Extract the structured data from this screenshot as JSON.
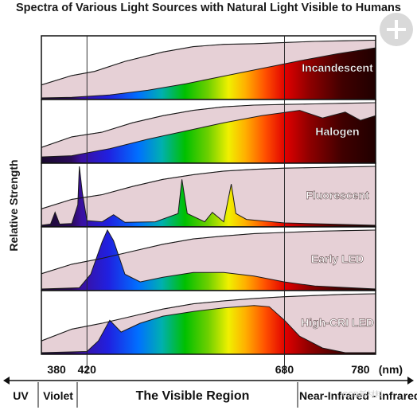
{
  "title": "Spectra of Various Light Sources with Natural Light Visible to Humans",
  "y_axis_label": "Relative Strength",
  "axis_unit": "(nm)",
  "regions": [
    {
      "label": "UV"
    },
    {
      "label": "Violet"
    },
    {
      "label": "The Visible Region"
    },
    {
      "label": "Near-Infrared - Infrared"
    }
  ],
  "watermark": "CSD新材料",
  "logo_icon": "plus-badge-icon",
  "colors": {
    "panel_border": "#111111",
    "natural_light_fill": "#e6d0d6",
    "curve_stroke": "#1a1a1a",
    "label_text": "#ffffff"
  },
  "chart_data": {
    "type": "area",
    "x_range_nm": [
      360,
      800
    ],
    "visible_range_nm": [
      420,
      680
    ],
    "x_ticks": [
      {
        "value": 380,
        "label": "380"
      },
      {
        "value": 420,
        "label": "420"
      },
      {
        "value": 680,
        "label": "680"
      },
      {
        "value": 780,
        "label": "780"
      }
    ],
    "panels": [
      {
        "name": "Incandescent",
        "natural": [
          [
            360,
            0.22
          ],
          [
            400,
            0.38
          ],
          [
            430,
            0.45
          ],
          [
            470,
            0.62
          ],
          [
            520,
            0.78
          ],
          [
            560,
            0.87
          ],
          [
            600,
            0.91
          ],
          [
            640,
            0.92
          ],
          [
            680,
            0.94
          ],
          [
            720,
            0.96
          ],
          [
            760,
            0.97
          ],
          [
            800,
            0.98
          ]
        ],
        "source": [
          [
            360,
            0.0
          ],
          [
            400,
            0.01
          ],
          [
            450,
            0.05
          ],
          [
            500,
            0.13
          ],
          [
            550,
            0.24
          ],
          [
            600,
            0.37
          ],
          [
            650,
            0.5
          ],
          [
            700,
            0.63
          ],
          [
            750,
            0.75
          ],
          [
            800,
            0.85
          ]
        ]
      },
      {
        "name": "Halogen",
        "natural": [
          [
            360,
            0.24
          ],
          [
            400,
            0.42
          ],
          [
            440,
            0.5
          ],
          [
            480,
            0.66
          ],
          [
            520,
            0.78
          ],
          [
            560,
            0.87
          ],
          [
            600,
            0.93
          ],
          [
            640,
            0.96
          ],
          [
            680,
            0.97
          ],
          [
            720,
            0.98
          ],
          [
            760,
            0.99
          ],
          [
            800,
            1.0
          ]
        ],
        "source": [
          [
            360,
            0.08
          ],
          [
            400,
            0.1
          ],
          [
            450,
            0.22
          ],
          [
            500,
            0.38
          ],
          [
            550,
            0.52
          ],
          [
            600,
            0.66
          ],
          [
            650,
            0.78
          ],
          [
            700,
            0.87
          ],
          [
            730,
            0.74
          ],
          [
            760,
            0.84
          ],
          [
            780,
            0.7
          ],
          [
            800,
            0.78
          ]
        ]
      },
      {
        "name": "Fluorescent",
        "natural": [
          [
            360,
            0.28
          ],
          [
            400,
            0.44
          ],
          [
            440,
            0.52
          ],
          [
            480,
            0.66
          ],
          [
            520,
            0.78
          ],
          [
            560,
            0.86
          ],
          [
            600,
            0.92
          ],
          [
            640,
            0.95
          ],
          [
            680,
            0.97
          ],
          [
            720,
            0.98
          ],
          [
            760,
            0.99
          ],
          [
            800,
            1.0
          ]
        ],
        "source": [
          [
            360,
            0.0
          ],
          [
            372,
            0.02
          ],
          [
            378,
            0.22
          ],
          [
            384,
            0.02
          ],
          [
            400,
            0.03
          ],
          [
            408,
            0.35
          ],
          [
            410,
            1.0
          ],
          [
            414,
            0.55
          ],
          [
            420,
            0.08
          ],
          [
            440,
            0.06
          ],
          [
            455,
            0.18
          ],
          [
            470,
            0.05
          ],
          [
            510,
            0.06
          ],
          [
            540,
            0.2
          ],
          [
            545,
            0.78
          ],
          [
            552,
            0.2
          ],
          [
            575,
            0.06
          ],
          [
            585,
            0.22
          ],
          [
            600,
            0.06
          ],
          [
            610,
            0.7
          ],
          [
            616,
            0.2
          ],
          [
            630,
            0.1
          ],
          [
            680,
            0.04
          ],
          [
            800,
            0.0
          ]
        ]
      },
      {
        "name": "Early LED",
        "natural": [
          [
            360,
            0.26
          ],
          [
            400,
            0.42
          ],
          [
            440,
            0.52
          ],
          [
            480,
            0.64
          ],
          [
            520,
            0.76
          ],
          [
            560,
            0.85
          ],
          [
            600,
            0.9
          ],
          [
            640,
            0.94
          ],
          [
            680,
            0.96
          ],
          [
            720,
            0.98
          ],
          [
            760,
            0.99
          ],
          [
            800,
            1.0
          ]
        ],
        "source": [
          [
            360,
            0.0
          ],
          [
            410,
            0.02
          ],
          [
            425,
            0.25
          ],
          [
            440,
            0.8
          ],
          [
            447,
            1.0
          ],
          [
            455,
            0.82
          ],
          [
            470,
            0.25
          ],
          [
            490,
            0.12
          ],
          [
            520,
            0.2
          ],
          [
            560,
            0.28
          ],
          [
            600,
            0.28
          ],
          [
            640,
            0.22
          ],
          [
            680,
            0.12
          ],
          [
            720,
            0.05
          ],
          [
            800,
            0.0
          ]
        ]
      },
      {
        "name": "High-CRI LED",
        "natural": [
          [
            360,
            0.2
          ],
          [
            400,
            0.4
          ],
          [
            440,
            0.5
          ],
          [
            480,
            0.62
          ],
          [
            520,
            0.74
          ],
          [
            560,
            0.83
          ],
          [
            600,
            0.88
          ],
          [
            640,
            0.92
          ],
          [
            680,
            0.95
          ],
          [
            720,
            0.97
          ],
          [
            760,
            0.99
          ],
          [
            800,
            1.0
          ]
        ],
        "source": [
          [
            360,
            0.0
          ],
          [
            420,
            0.02
          ],
          [
            435,
            0.2
          ],
          [
            450,
            0.55
          ],
          [
            465,
            0.35
          ],
          [
            490,
            0.5
          ],
          [
            520,
            0.62
          ],
          [
            560,
            0.7
          ],
          [
            600,
            0.76
          ],
          [
            640,
            0.8
          ],
          [
            660,
            0.78
          ],
          [
            680,
            0.55
          ],
          [
            700,
            0.28
          ],
          [
            730,
            0.08
          ],
          [
            760,
            0.0
          ],
          [
            800,
            0.0
          ]
        ]
      }
    ]
  }
}
